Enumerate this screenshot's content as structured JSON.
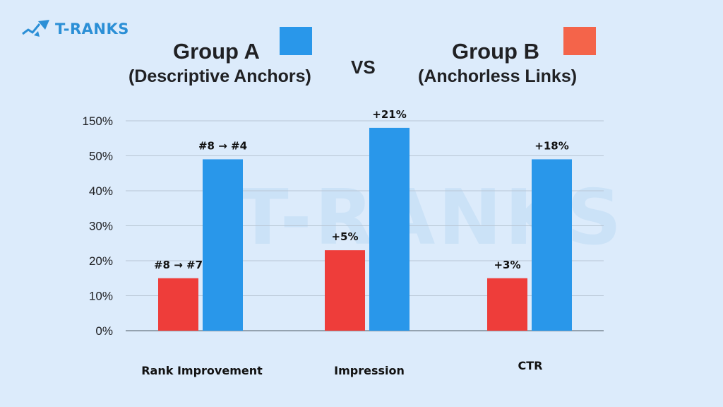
{
  "brand": {
    "name": "T-RANKS",
    "color": "#2b8fd6",
    "icon": "rocket-chart-icon"
  },
  "legend": {
    "group_a": {
      "title": "Group A",
      "subtitle": "(Descriptive Anchors)",
      "color": "#2997ea"
    },
    "vs": "VS",
    "group_b": {
      "title": "Group B",
      "subtitle": "(Anchorless Links)",
      "color": "#f4644a"
    }
  },
  "watermark": "T-RANKS",
  "chart_data": {
    "type": "bar",
    "categories": [
      "Rank Improvement",
      "Impression",
      "CTR"
    ],
    "y_ticks": [
      "0%",
      "10%",
      "20%",
      "30%",
      "40%",
      "50%",
      "150%"
    ],
    "series": [
      {
        "name": "Group B",
        "color": "#ee3d3a",
        "values": [
          15,
          23,
          15
        ],
        "labels": [
          "#8 → #7",
          "+5%",
          "+3%"
        ]
      },
      {
        "name": "Group A",
        "color": "#2997ea",
        "values": [
          49,
          58,
          49
        ],
        "labels": [
          "#8 → #4",
          "+21%",
          "+18%"
        ]
      }
    ],
    "grid": true
  }
}
